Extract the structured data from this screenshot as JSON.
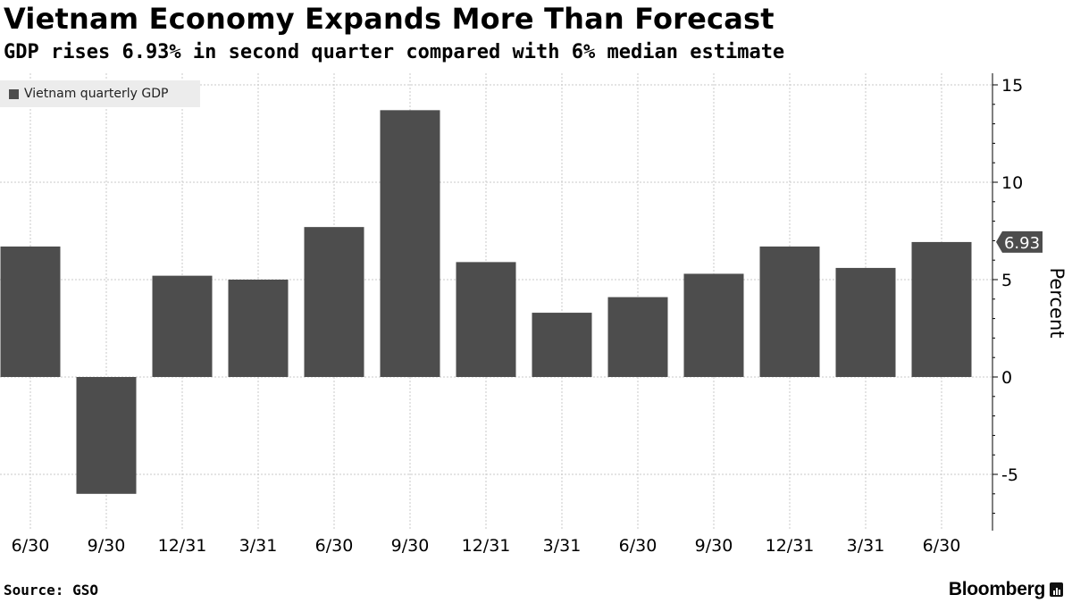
{
  "header": {
    "title": "Vietnam Economy Expands More Than Forecast",
    "subtitle": "GDP rises 6.93% in second quarter compared with 6% median estimate"
  },
  "footer": {
    "source": "Source: GSO",
    "brand": "Bloomberg"
  },
  "colors": {
    "bar": "#4d4d4d",
    "grid": "#c8c8c8",
    "axis": "#000000",
    "legend_bg": "#ececec"
  },
  "chart_data": {
    "type": "bar",
    "title": "Vietnam Economy Expands More Than Forecast",
    "subtitle": "GDP rises 6.93% in second quarter compared with 6% median estimate",
    "xlabel": "",
    "ylabel": "Percent",
    "ylim": [
      -7.7,
      15.5
    ],
    "yticks": [
      15,
      10,
      5,
      0,
      -5
    ],
    "ytick_labels": [
      "15",
      "10",
      "5",
      "0",
      "-5"
    ],
    "grid": true,
    "legend_position": "top-left",
    "categories": [
      "6/30",
      "9/30",
      "12/31",
      "3/31",
      "6/30",
      "9/30",
      "12/31",
      "3/31",
      "6/30",
      "9/30",
      "12/31",
      "3/31",
      "6/30"
    ],
    "series": [
      {
        "name": "Vietnam quarterly GDP",
        "values": [
          6.7,
          -6.0,
          5.2,
          5.0,
          7.7,
          13.7,
          5.9,
          3.3,
          4.1,
          5.3,
          6.7,
          5.6,
          6.93
        ]
      }
    ],
    "annotations": [
      {
        "label": "6.93",
        "value": 6.93
      }
    ]
  }
}
